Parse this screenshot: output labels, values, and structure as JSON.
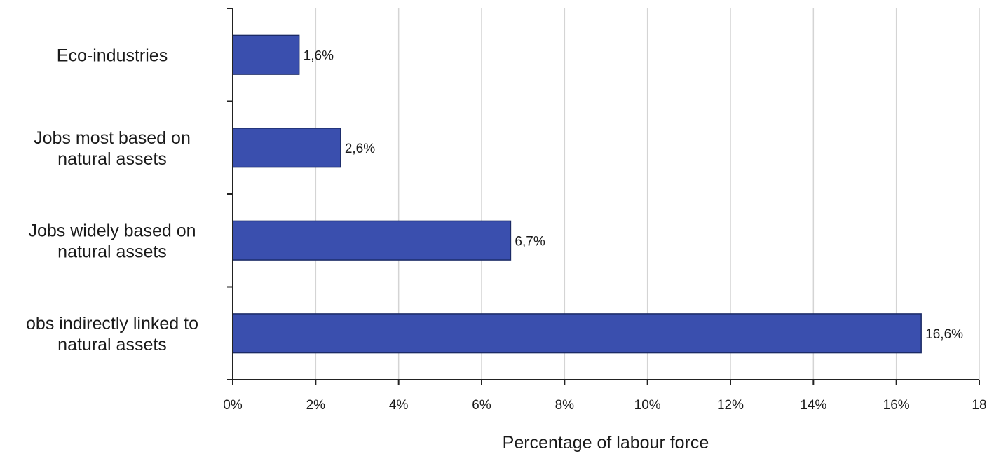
{
  "chart_data": {
    "type": "bar",
    "orientation": "horizontal",
    "categories": [
      [
        "Eco-industries"
      ],
      [
        "Jobs most based on",
        "natural assets"
      ],
      [
        "Jobs widely based on",
        "natural assets"
      ],
      [
        "obs indirectly linked to",
        "natural assets"
      ]
    ],
    "values": [
      1.6,
      2.6,
      6.7,
      16.6
    ],
    "data_labels": [
      "1,6%",
      "2,6%",
      "6,7%",
      "16,6%"
    ],
    "xticks": [
      0,
      2,
      4,
      6,
      8,
      10,
      12,
      14,
      16,
      18
    ],
    "xtick_labels": [
      "0%",
      "2%",
      "4%",
      "6%",
      "8%",
      "10%",
      "12%",
      "14%",
      "16%",
      "18"
    ],
    "xlim": [
      0,
      18
    ],
    "xlabel": "Percentage of labour force",
    "title": "",
    "grid": "vertical",
    "legend": "none",
    "colors": {
      "bar": "#3a4fae",
      "bar_stroke": "#1b2a66",
      "grid": "#d4d4d4",
      "axis": "#222222"
    }
  }
}
